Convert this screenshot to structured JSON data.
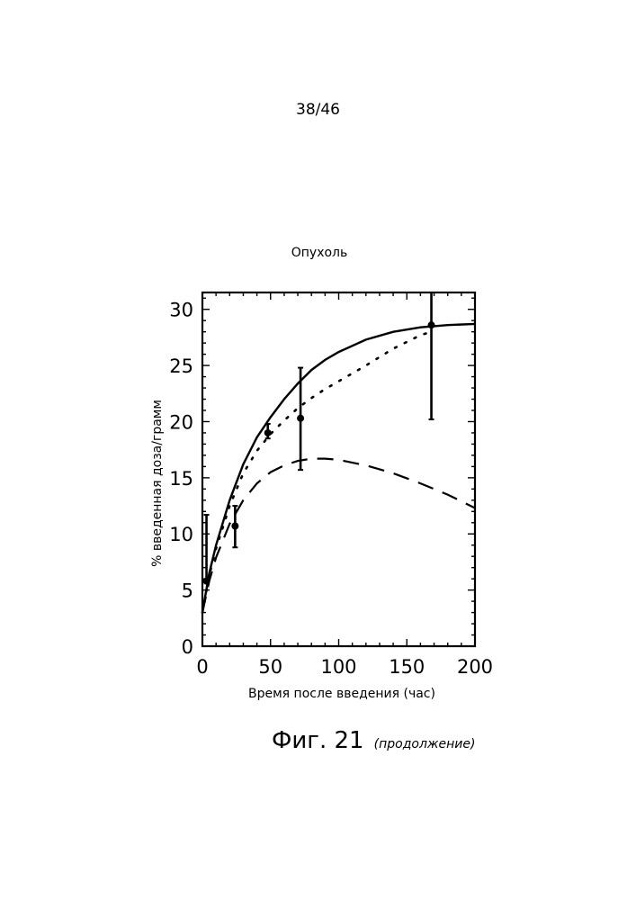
{
  "page": {
    "page_number": "38/46"
  },
  "figure": {
    "caption": "Фиг. 21",
    "caption_note": "(продолжение)"
  },
  "chart_data": {
    "type": "scatter",
    "title": "Опухоль",
    "xlabel": "Время после введения (час)",
    "ylabel": "% введенная доза/грамм",
    "xlim": [
      0,
      200
    ],
    "ylim": [
      0,
      31.5
    ],
    "xticks": [
      0,
      50,
      100,
      150,
      200
    ],
    "yticks": [
      0,
      5,
      10,
      15,
      20,
      25,
      30
    ],
    "grid": false,
    "series": [
      {
        "style": "points-with-errorbars",
        "x": [
          3,
          24,
          48,
          72,
          168
        ],
        "y": [
          5.8,
          10.7,
          19.0,
          20.3,
          28.6
        ],
        "err_low": [
          5.7,
          8.8,
          18.5,
          15.7,
          20.2
        ],
        "err_high": [
          11.7,
          12.5,
          19.8,
          24.8,
          31.5
        ]
      },
      {
        "style": "solid",
        "x": [
          0,
          5,
          10,
          20,
          30,
          40,
          50,
          60,
          70,
          80,
          90,
          100,
          120,
          140,
          160,
          180,
          200
        ],
        "y": [
          3.0,
          6.5,
          9.0,
          13.0,
          16.2,
          18.6,
          20.4,
          22.0,
          23.4,
          24.6,
          25.5,
          26.2,
          27.3,
          28.0,
          28.4,
          28.6,
          28.7
        ]
      },
      {
        "style": "dotted",
        "x": [
          0,
          5,
          10,
          20,
          30,
          40,
          50,
          60,
          70,
          80,
          90,
          100,
          120,
          140,
          160,
          168
        ],
        "y": [
          3.0,
          6.3,
          8.7,
          12.5,
          15.4,
          17.4,
          18.9,
          20.1,
          21.2,
          22.1,
          22.9,
          23.6,
          25.0,
          26.5,
          27.7,
          28.0
        ]
      },
      {
        "style": "dashed",
        "x": [
          0,
          5,
          10,
          20,
          30,
          40,
          50,
          60,
          70,
          80,
          90,
          100,
          120,
          140,
          160,
          180,
          200
        ],
        "y": [
          3.0,
          5.8,
          7.9,
          10.9,
          13.0,
          14.5,
          15.5,
          16.1,
          16.5,
          16.7,
          16.7,
          16.6,
          16.1,
          15.4,
          14.5,
          13.5,
          12.3
        ]
      }
    ]
  }
}
